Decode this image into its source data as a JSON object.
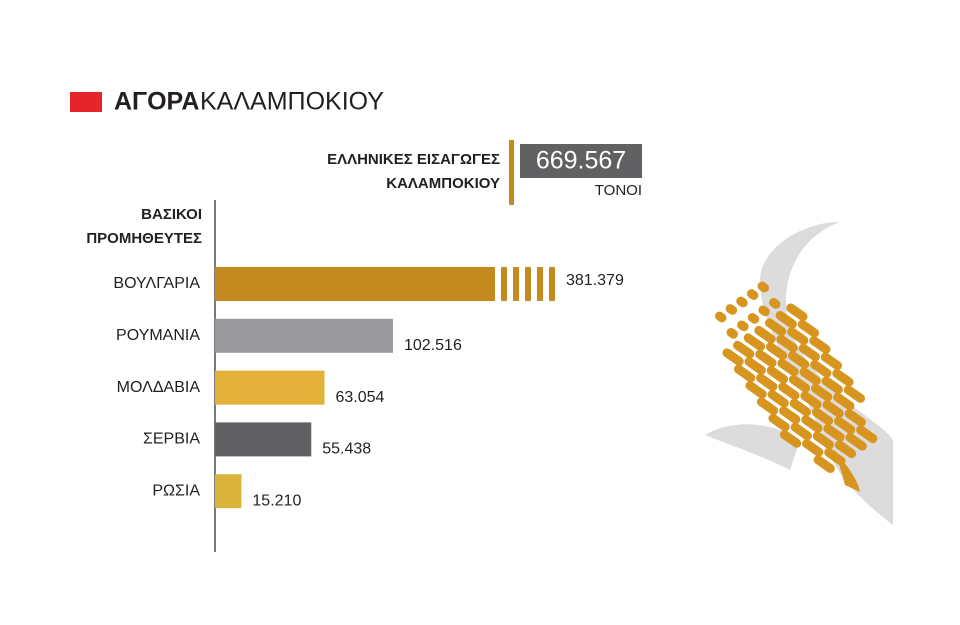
{
  "chart_data": {
    "type": "bar",
    "orientation": "horizontal",
    "title_bold": "ΑΓΟΡΑ",
    "title_regular": "ΚΑΛΑΜΠΟΚΙΟΥ",
    "total_label": [
      "ΕΛΛΗΝΙΚΕΣ ΕΙΣΑΓΩΓΕΣ",
      "ΚΑΛΑΜΠΟΚΙΟΥ"
    ],
    "total": 669567,
    "total_value_label": "669.567",
    "total_unit": "ΤΟΝΟΙ",
    "axis_label": [
      "ΒΑΣΙΚΟΙ",
      "ΠΡΟΜΗΘΕΥΤΕΣ"
    ],
    "categories": [
      "ΒΟΥΛΓΑΡΙΑ",
      "ΡΟΥΜΑΝΙΑ",
      "ΜΟΛΔΑΒΙΑ",
      "ΣΕΡΒΙΑ",
      "ΡΩΣΙΑ"
    ],
    "values": [
      381379,
      102516,
      63054,
      55438,
      15210
    ],
    "value_labels": [
      "381.379",
      "102.516",
      "63.054",
      "55.438",
      "15.210"
    ],
    "colors": [
      "#c48a1f",
      "#9a9a9e",
      "#e3b03a",
      "#616163",
      "#d9b33a"
    ]
  }
}
